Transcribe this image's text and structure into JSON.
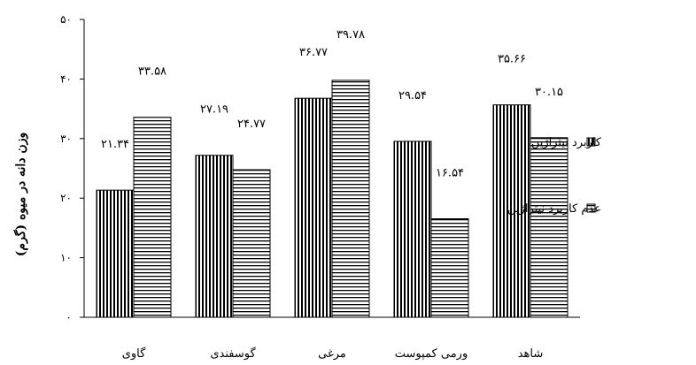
{
  "chart_data": {
    "type": "bar",
    "ylabel": "وزن دانه در میوه (گرم)",
    "ylim": [
      0,
      50
    ],
    "yticks": [
      "۰",
      "۱۰",
      "۲۰",
      "۳۰",
      "۴۰",
      "۵۰"
    ],
    "ytick_values": [
      0,
      10,
      20,
      30,
      40,
      50
    ],
    "grid": false,
    "legend_position": "right",
    "categories": [
      "گاوی",
      "گوسفندی",
      "مرغی",
      "ورمی کمپوست",
      "شاهد"
    ],
    "series": [
      {
        "name": "کاربرد نیتراژین",
        "pattern": "vertical-lines",
        "values": [
          21.34,
          27.19,
          36.77,
          29.54,
          35.66
        ],
        "labels": [
          "۲۱.۳۴",
          "۲۷.۱۹",
          "۳۶.۷۷",
          "۲۹.۵۴",
          "۳۵.۶۶"
        ]
      },
      {
        "name": "عدم کاربرد نیتراژین",
        "pattern": "horizontal-lines",
        "values": [
          33.58,
          24.77,
          39.78,
          16.54,
          30.15
        ],
        "labels": [
          "۳۳.۵۸",
          "۲۴.۷۷",
          "۳۹.۷۸",
          "۱۶.۵۴",
          "۳۰.۱۵"
        ]
      }
    ]
  }
}
